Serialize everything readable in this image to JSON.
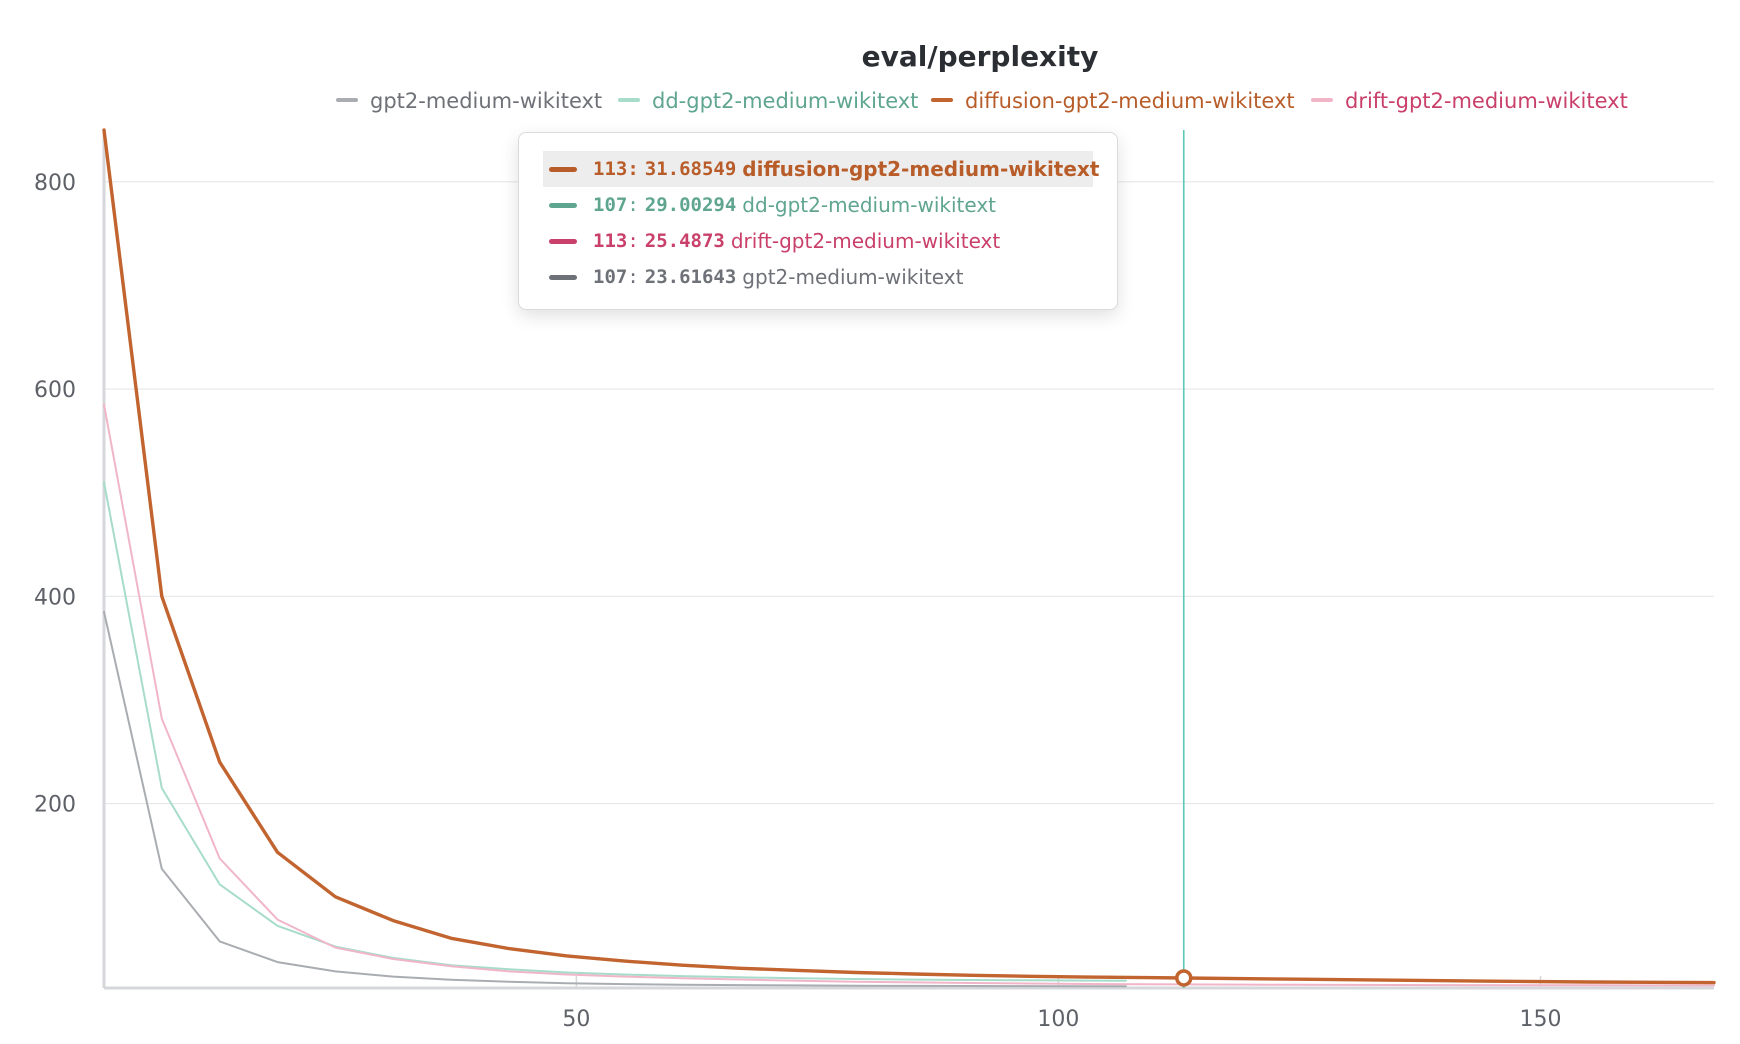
{
  "chart_data": {
    "type": "line",
    "title": "eval/perplexity",
    "xlabel": "",
    "ylabel": "",
    "xlim": [
      1,
      168
    ],
    "ylim": [
      22,
      850
    ],
    "x_ticks": [
      50,
      100,
      150
    ],
    "y_ticks": [
      200,
      400,
      600,
      800
    ],
    "grid": true,
    "legend_position": "top",
    "series": [
      {
        "name": "gpt2-medium-wikitext",
        "color": "#a9acb1",
        "tooltip_color": "#6e7177",
        "points": [
          [
            1,
            385
          ],
          [
            7,
            137
          ],
          [
            13,
            67
          ],
          [
            19,
            47
          ],
          [
            25,
            38
          ],
          [
            31,
            33
          ],
          [
            37,
            30
          ],
          [
            43,
            28
          ],
          [
            49,
            26.5
          ],
          [
            55,
            25.8
          ],
          [
            61,
            25.2
          ],
          [
            67,
            24.8
          ],
          [
            73,
            24.5
          ],
          [
            79,
            24.2
          ],
          [
            85,
            24.0
          ],
          [
            91,
            23.9
          ],
          [
            97,
            23.8
          ],
          [
            103,
            23.7
          ],
          [
            107,
            23.61643
          ]
        ]
      },
      {
        "name": "dd-gpt2-medium-wikitext",
        "color": "#a7dcca",
        "tooltip_color": "#5fa590",
        "points": [
          [
            1,
            510
          ],
          [
            7,
            215
          ],
          [
            13,
            122
          ],
          [
            19,
            82
          ],
          [
            25,
            62
          ],
          [
            31,
            51
          ],
          [
            37,
            44
          ],
          [
            43,
            40
          ],
          [
            49,
            37
          ],
          [
            55,
            35
          ],
          [
            61,
            33.5
          ],
          [
            67,
            32.3
          ],
          [
            73,
            31.4
          ],
          [
            79,
            30.7
          ],
          [
            85,
            30.1
          ],
          [
            91,
            29.7
          ],
          [
            97,
            29.4
          ],
          [
            103,
            29.1
          ],
          [
            107,
            29.00294
          ]
        ]
      },
      {
        "name": "diffusion-gpt2-medium-wikitext",
        "color": "#c2642f",
        "tooltip_color": "#b85d2a",
        "points": [
          [
            1,
            850
          ],
          [
            7,
            400
          ],
          [
            13,
            240
          ],
          [
            19,
            153
          ],
          [
            25,
            110
          ],
          [
            31,
            87
          ],
          [
            37,
            70
          ],
          [
            43,
            60
          ],
          [
            49,
            53
          ],
          [
            55,
            48
          ],
          [
            61,
            44
          ],
          [
            67,
            41
          ],
          [
            73,
            39
          ],
          [
            79,
            37
          ],
          [
            85,
            35.5
          ],
          [
            91,
            34.3
          ],
          [
            97,
            33.3
          ],
          [
            103,
            32.5
          ],
          [
            109,
            32.0
          ],
          [
            113,
            31.68549
          ],
          [
            125,
            30.5
          ],
          [
            135,
            29.5
          ],
          [
            145,
            28.6
          ],
          [
            155,
            27.8
          ],
          [
            168,
            27.2
          ]
        ]
      },
      {
        "name": "drift-gpt2-medium-wikitext",
        "color": "#f0b6c8",
        "tooltip_color": "#c9406a",
        "points": [
          [
            1,
            585
          ],
          [
            7,
            282
          ],
          [
            13,
            147
          ],
          [
            19,
            88
          ],
          [
            25,
            61
          ],
          [
            31,
            50
          ],
          [
            37,
            43
          ],
          [
            43,
            38
          ],
          [
            49,
            35
          ],
          [
            55,
            33
          ],
          [
            61,
            31.5
          ],
          [
            67,
            30.2
          ],
          [
            73,
            29.0
          ],
          [
            79,
            28.1
          ],
          [
            85,
            27.4
          ],
          [
            91,
            26.8
          ],
          [
            97,
            26.3
          ],
          [
            103,
            25.9
          ],
          [
            109,
            25.6
          ],
          [
            113,
            25.4873
          ],
          [
            125,
            25.1
          ],
          [
            140,
            24.8
          ],
          [
            155,
            24.6
          ],
          [
            168,
            24.5
          ]
        ]
      }
    ],
    "hover": {
      "x": 113,
      "marker_value": 31.68549,
      "cursor_color": "#5cc8b8",
      "rows": [
        {
          "step": "113",
          "value": "31.68549",
          "name": "diffusion-gpt2-medium-wikitext",
          "color": "#b85d2a",
          "highlighted": true
        },
        {
          "step": "107",
          "value": "29.00294",
          "name": "dd-gpt2-medium-wikitext",
          "color": "#5fa590",
          "highlighted": false
        },
        {
          "step": "113",
          "value": "25.4873",
          "name": "drift-gpt2-medium-wikitext",
          "color": "#c9406a",
          "highlighted": false
        },
        {
          "step": "107",
          "value": "23.61643",
          "name": "gpt2-medium-wikitext",
          "color": "#6e7177",
          "highlighted": false
        }
      ]
    }
  }
}
